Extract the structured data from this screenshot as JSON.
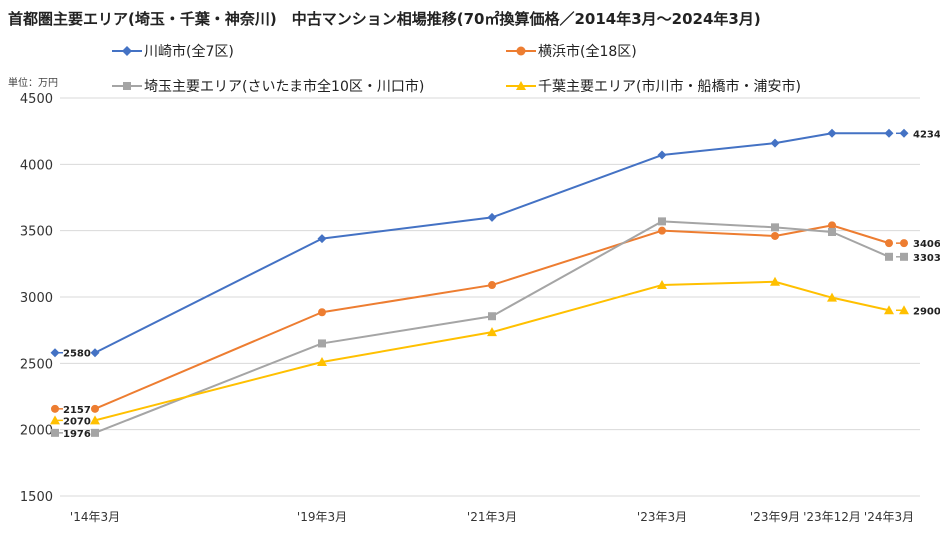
{
  "chart_data": {
    "type": "line",
    "title": "首都圏主要エリア(埼玉・千葉・神奈川)　中古マンション相場推移(70㎡換算価格／2014年3月～2024年3月)",
    "unit_label": "単位：万円",
    "categories": [
      "'14年3月",
      "'19年3月",
      "'21年3月",
      "'23年3月",
      "'23年9月",
      "'23年12月",
      "'24年3月"
    ],
    "ylim": [
      1500,
      4500
    ],
    "yticks": [
      1500,
      2000,
      2500,
      3000,
      3500,
      4000,
      4500
    ],
    "grid": true,
    "legend_position": "top",
    "series": [
      {
        "name": "川崎市(全7区)",
        "color": "#4472C4",
        "marker": "diamond",
        "values": [
          2580,
          3440,
          3600,
          4070,
          4160,
          4234,
          4234
        ],
        "start_label": "2580",
        "end_label": "4234"
      },
      {
        "name": "横浜市(全18区)",
        "color": "#ED7D31",
        "marker": "circle",
        "values": [
          2157,
          2885,
          3090,
          3500,
          3460,
          3540,
          3406
        ],
        "start_label": "2157",
        "end_label": "3406"
      },
      {
        "name": "埼玉主要エリア(さいたま市全10区・川口市)",
        "color": "#A5A5A5",
        "marker": "square",
        "values": [
          1976,
          2650,
          2855,
          3570,
          3525,
          3490,
          3303
        ],
        "start_label": "1976",
        "end_label": "3303"
      },
      {
        "name": "千葉主要エリア(市川市・船橋市・浦安市)",
        "color": "#FFC000",
        "marker": "triangle",
        "values": [
          2070,
          2510,
          2735,
          3090,
          3115,
          2995,
          2900
        ],
        "start_label": "2070",
        "end_label": "2900"
      }
    ]
  }
}
